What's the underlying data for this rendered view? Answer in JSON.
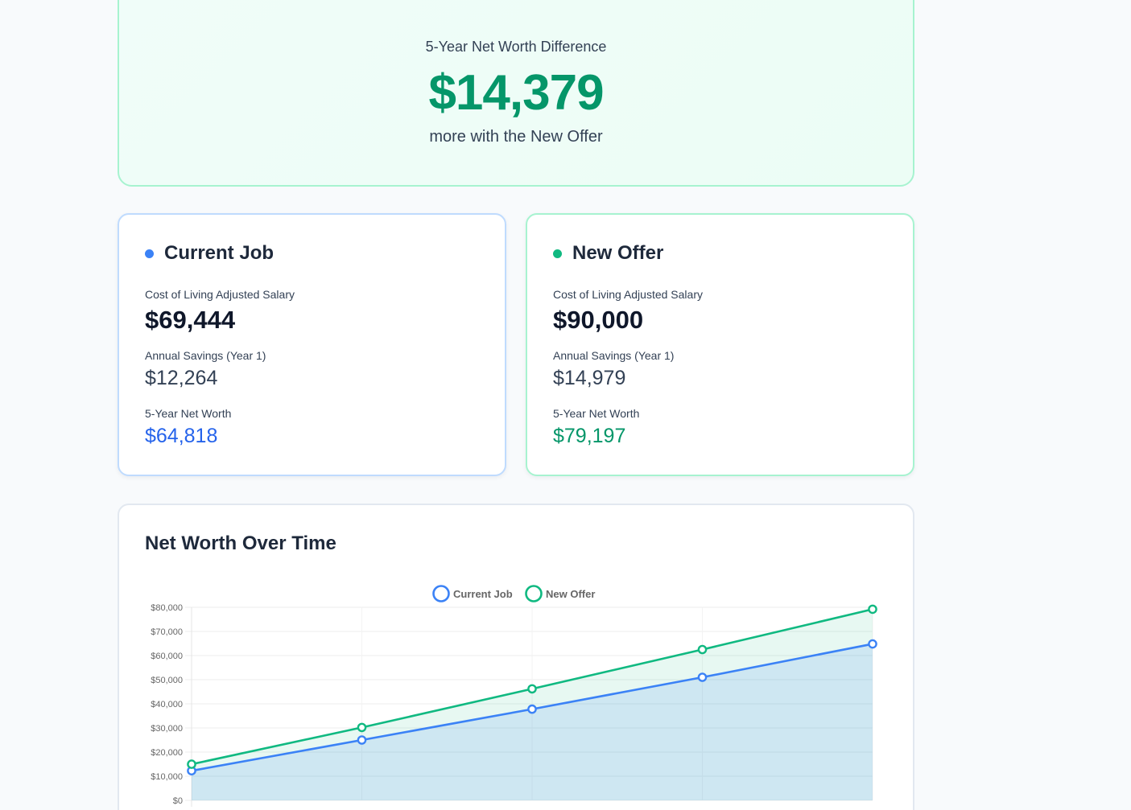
{
  "summary": {
    "label": "5-Year Net Worth Difference",
    "value": "$14,379",
    "subtext": "more with the New Offer"
  },
  "current_job": {
    "title": "Current Job",
    "salary_label": "Cost of Living Adjusted Salary",
    "salary_value": "$69,444",
    "savings_label": "Annual Savings (Year 1)",
    "savings_value": "$12,264",
    "networth_label": "5-Year Net Worth",
    "networth_value": "$64,818",
    "color": "#3b82f6"
  },
  "new_offer": {
    "title": "New Offer",
    "salary_label": "Cost of Living Adjusted Salary",
    "salary_value": "$90,000",
    "savings_label": "Annual Savings (Year 1)",
    "savings_value": "$14,979",
    "networth_label": "5-Year Net Worth",
    "networth_value": "$79,197",
    "color": "#10b981"
  },
  "chart_title": "Net Worth Over Time",
  "chart_data": {
    "type": "area",
    "title": "Net Worth Over Time",
    "x": [
      1,
      2,
      3,
      4,
      5
    ],
    "ylim": [
      0,
      80000
    ],
    "yticks": [
      "$0",
      "$10,000",
      "$20,000",
      "$30,000",
      "$40,000",
      "$50,000",
      "$60,000",
      "$70,000",
      "$80,000"
    ],
    "grid": true,
    "legend": "top-center",
    "series": [
      {
        "name": "Current Job",
        "color": "#3b82f6",
        "values": [
          12264,
          25000,
          37800,
          51000,
          64818
        ]
      },
      {
        "name": "New Offer",
        "color": "#10b981",
        "values": [
          14979,
          30200,
          46200,
          62500,
          79197
        ]
      }
    ]
  }
}
